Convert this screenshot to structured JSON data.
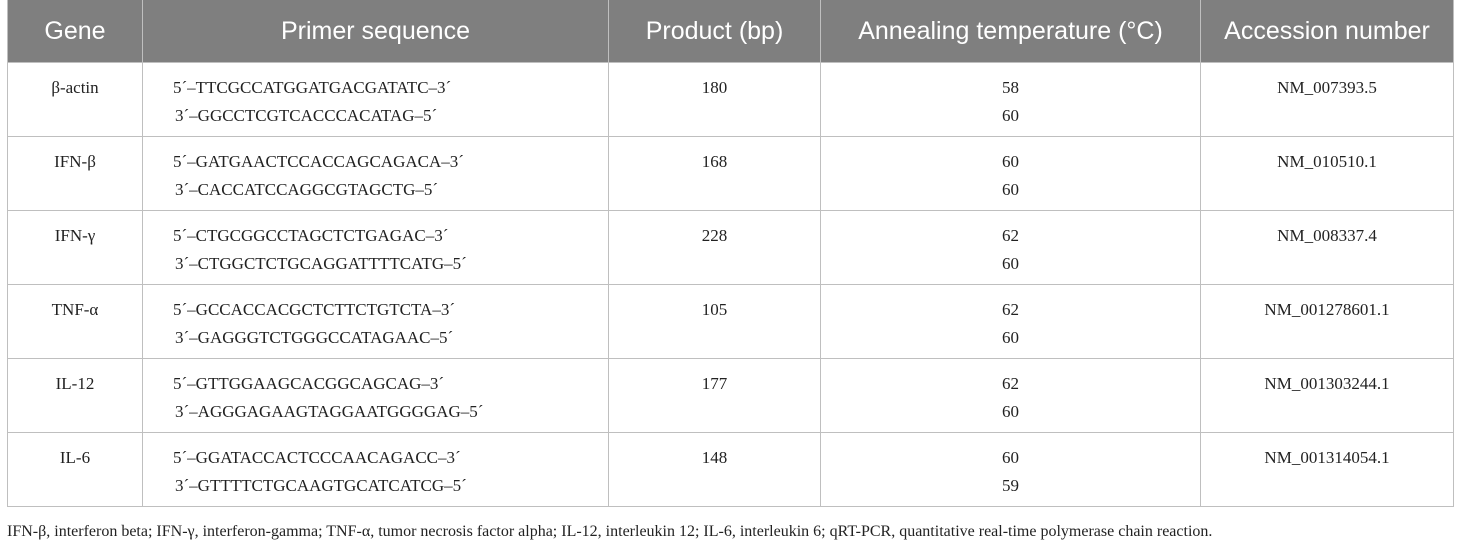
{
  "table": {
    "header": [
      "Gene",
      "Primer sequence",
      "Product (bp)",
      "Annealing temperature (°C)",
      "Accession number"
    ],
    "rows": [
      [
        "β-actin",
        [
          "5´–TTCGCCATGGATGACGATATC–3´",
          "3´–GGCCTCGTCACCCACATAG–5´"
        ],
        180,
        [
          58,
          60
        ],
        "NM_007393.5"
      ],
      [
        "IFN-β",
        [
          "5´–GATGAACTCCACCAGCAGACA–3´",
          "3´–CACCATCCAGGCGTAGCTG–5´"
        ],
        168,
        [
          60,
          60
        ],
        "NM_010510.1"
      ],
      [
        "IFN-γ",
        [
          "5´–CTGCGGCCTAGCTCTGAGAC–3´",
          "3´–CTGGCTCTGCAGGATTTTCATG–5´"
        ],
        228,
        [
          62,
          60
        ],
        "NM_008337.4"
      ],
      [
        "TNF-α",
        [
          "5´–GCCACCACGCTCTTCTGTCTA–3´",
          "3´–GAGGGTCTGGGCCATAGAAC–5´"
        ],
        105,
        [
          62,
          60
        ],
        "NM_001278601.1"
      ],
      [
        "IL-12",
        [
          "5´–GTTGGAAGCACGGCAGCAG–3´",
          "3´–AGGGAGAAGTAGGAATGGGGAG–5´"
        ],
        177,
        [
          62,
          60
        ],
        "NM_001303244.1"
      ],
      [
        "IL-6",
        [
          "5´–GGATACCACTCCCAACAGACC–3´",
          "3´–GTTTTCTGCAAGTGCATCATCG–5´"
        ],
        148,
        [
          60,
          59
        ],
        "NM_001314054.1"
      ]
    ],
    "footnote": "IFN-β, interferon beta; IFN-γ, interferon-gamma; TNF-α, tumor necrosis factor alpha; IL-12, interleukin 12; IL-6, interleukin 6; qRT-PCR, quantitative real-time polymerase chain reaction."
  }
}
